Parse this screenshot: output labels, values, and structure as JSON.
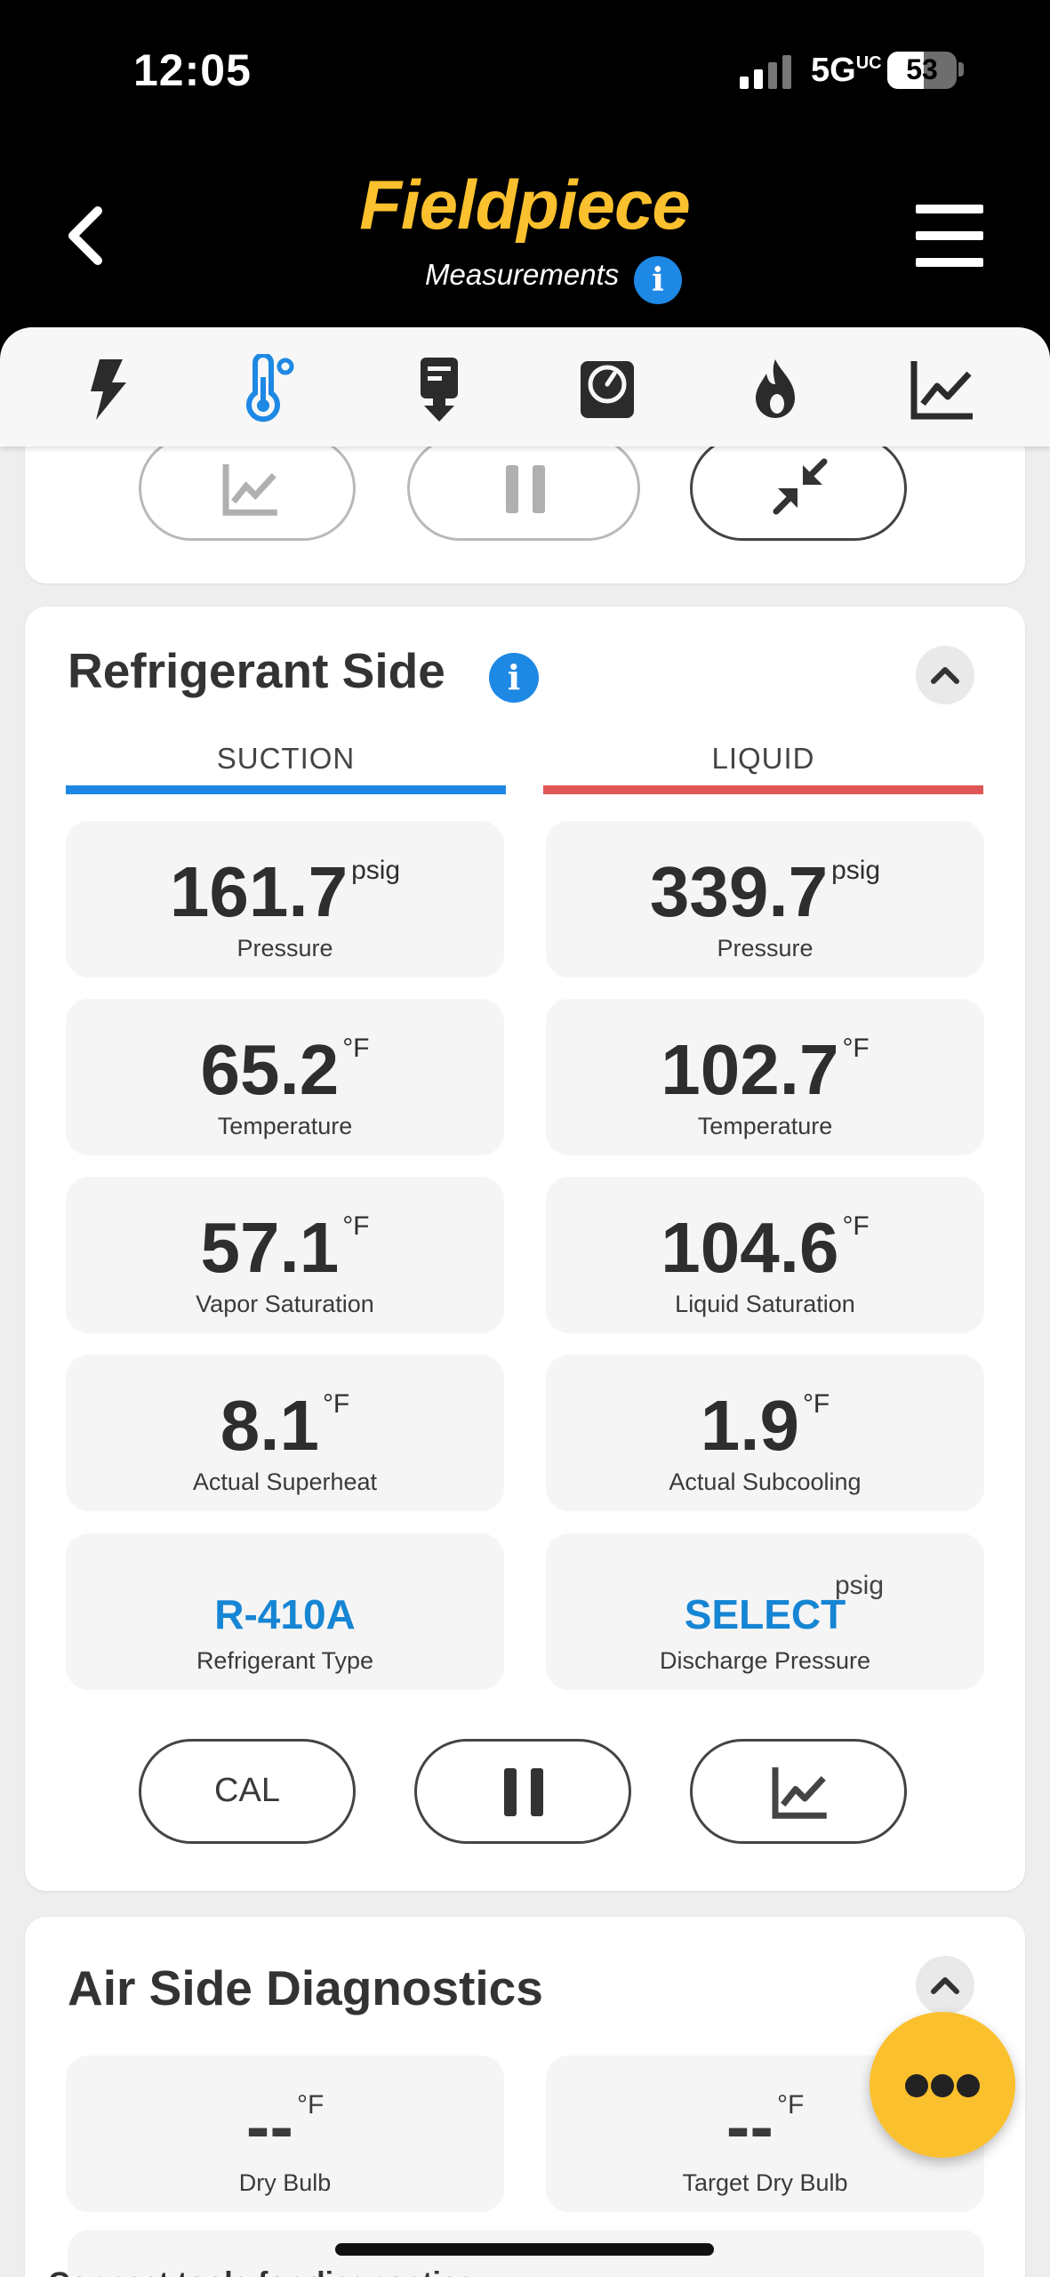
{
  "status_bar": {
    "time": "12:05",
    "network": "5G",
    "network_sup": "UC",
    "battery": "53"
  },
  "header": {
    "logo": "Fieldpiece",
    "subtitle": "Measurements"
  },
  "tabs": [
    {
      "icon": "lightning-icon",
      "active": false
    },
    {
      "icon": "thermometer-icon",
      "active": true
    },
    {
      "icon": "probe-icon",
      "active": false
    },
    {
      "icon": "gauge-icon",
      "active": false
    },
    {
      "icon": "flame-icon",
      "active": false
    },
    {
      "icon": "chart-icon",
      "active": false
    }
  ],
  "refrigerant": {
    "title": "Refrigerant Side",
    "suction_label": "SUCTION",
    "liquid_label": "LIQUID",
    "suction": [
      {
        "value": "161.7",
        "unit": "psig",
        "label": "Pressure"
      },
      {
        "value": "65.2",
        "unit": "°F",
        "label": "Temperature"
      },
      {
        "value": "57.1",
        "unit": "°F",
        "label": "Vapor Saturation"
      },
      {
        "value": "8.1",
        "unit": "°F",
        "label": "Actual Superheat"
      },
      {
        "value": "R-410A",
        "unit": "",
        "label": "Refrigerant Type"
      }
    ],
    "liquid": [
      {
        "value": "339.7",
        "unit": "psig",
        "label": "Pressure"
      },
      {
        "value": "102.7",
        "unit": "°F",
        "label": "Temperature"
      },
      {
        "value": "104.6",
        "unit": "°F",
        "label": "Liquid Saturation"
      },
      {
        "value": "1.9",
        "unit": "°F",
        "label": "Actual Subcooling"
      },
      {
        "value": "SELECT",
        "unit": "psig",
        "label": "Discharge Pressure"
      }
    ],
    "cal_label": "CAL"
  },
  "air": {
    "title": "Air Side Diagnostics",
    "tiles": [
      {
        "value": "--",
        "unit": "°F",
        "label": "Dry Bulb"
      },
      {
        "value": "--",
        "unit": "°F",
        "label": "Target Dry Bulb"
      }
    ],
    "connect_text": "Connect tools for diagnostics"
  },
  "colors": {
    "accent_blue": "#1e88e5",
    "suction_bar": "#1e88e5",
    "liquid_bar": "#e05656",
    "brand_yellow": "#fbc02d"
  }
}
